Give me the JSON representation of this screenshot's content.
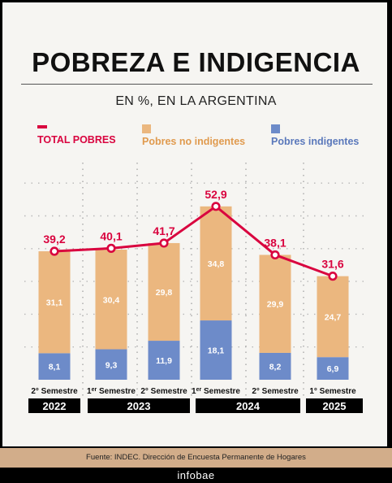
{
  "header": {
    "title": "POBREZA E INDIGENCIA",
    "subtitle": "EN %, EN LA ARGENTINA"
  },
  "legend": {
    "total": "TOTAL POBRES",
    "no_indigentes": "Pobres no indigentes",
    "indigentes": "Pobres indigentes"
  },
  "colors": {
    "total": "#d9043f",
    "no_indigentes": "#ebb77f",
    "indigentes": "#6d8bc9",
    "year_bar": "#000000"
  },
  "footer": {
    "source": "Fuente: INDEC. Dirección de Encuesta Permanente de Hogares",
    "brand": "infobae"
  },
  "chart_data": {
    "type": "bar",
    "stacked": true,
    "categories": [
      "2° Semestre",
      "1er Semestre",
      "2° Semestre",
      "1er Semestre",
      "2° Semestre",
      "1° Semestre"
    ],
    "years": [
      {
        "label": "2022",
        "span": 1
      },
      {
        "label": "2023",
        "span": 2
      },
      {
        "label": "2024",
        "span": 2
      },
      {
        "label": "2025",
        "span": 1
      }
    ],
    "series": [
      {
        "name": "Pobres indigentes",
        "values": [
          8.1,
          9.3,
          11.9,
          18.1,
          8.2,
          6.9
        ]
      },
      {
        "name": "Pobres no indigentes",
        "values": [
          31.1,
          30.4,
          29.8,
          34.8,
          29.9,
          24.7
        ]
      },
      {
        "name": "TOTAL POBRES",
        "type": "line",
        "values": [
          39.2,
          40.1,
          41.7,
          52.9,
          38.1,
          31.6
        ]
      }
    ],
    "ylim": [
      0,
      60
    ],
    "grid": true
  }
}
